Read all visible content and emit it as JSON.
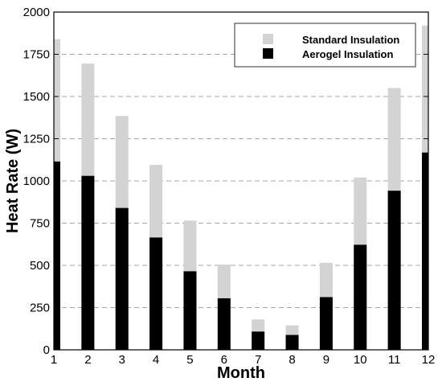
{
  "chart_data": {
    "type": "bar",
    "title": "",
    "xlabel": "Month",
    "ylabel": "Heat Rate (W)",
    "categories": [
      "1",
      "2",
      "3",
      "4",
      "5",
      "6",
      "7",
      "8",
      "9",
      "10",
      "11",
      "12"
    ],
    "x": [
      1,
      2,
      3,
      4,
      5,
      6,
      7,
      8,
      9,
      10,
      11,
      12
    ],
    "xlim": [
      1,
      12
    ],
    "ylim": [
      0,
      2000
    ],
    "yticks": [
      0,
      250,
      500,
      750,
      1000,
      1250,
      1500,
      1750,
      2000
    ],
    "ytick_labels": [
      "0",
      "250",
      "500",
      "750",
      "1000",
      "1250",
      "1500",
      "1750",
      "2000"
    ],
    "grid": "horizontal-dashed",
    "legend_position": "top-right",
    "overlaid": true,
    "series": [
      {
        "name": "Standard Insulation",
        "color": "#d3d3d3",
        "values": [
          1840,
          1695,
          1385,
          1095,
          765,
          505,
          180,
          145,
          515,
          1020,
          1550,
          1920
        ]
      },
      {
        "name": "Aerogel Insulation",
        "color": "#000000",
        "values": [
          1115,
          1030,
          840,
          665,
          465,
          305,
          108,
          88,
          312,
          622,
          942,
          1168
        ]
      }
    ]
  }
}
